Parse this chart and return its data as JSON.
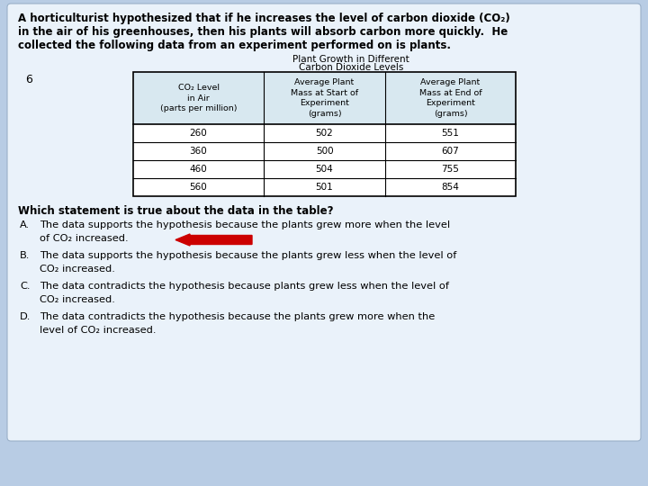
{
  "background_color": "#b8cce4",
  "card_color": "#dce9f5",
  "title_lines": [
    "A horticulturist hypothesized that if he increases the level of carbon dioxide (CO₂)",
    "in the air of his greenhouses, then his plants will absorb carbon more quickly.  He",
    "collected the following data from an experiment performed on is plants."
  ],
  "question_number": "6",
  "table_title_line1": "Plant Growth in Different",
  "table_title_line2": "Carbon Dioxide Levels",
  "col_headers": [
    "CO₂ Level\nin Air\n(parts per million)",
    "Average Plant\nMass at Start of\nExperiment\n(grams)",
    "Average Plant\nMass at End of\nExperiment\n(grams)"
  ],
  "table_data": [
    [
      "260",
      "502",
      "551"
    ],
    [
      "360",
      "500",
      "607"
    ],
    [
      "460",
      "504",
      "755"
    ],
    [
      "560",
      "501",
      "854"
    ]
  ],
  "question": "Which statement is true about the data in the table?",
  "options": [
    [
      "A.",
      "The data supports the hypothesis because the plants grew more when the level",
      "of CO₂ increased."
    ],
    [
      "B.",
      "The data supports the hypothesis because the plants grew less when the level of",
      "CO₂ increased."
    ],
    [
      "C.",
      "The data contradicts the hypothesis because plants grew less when the level of",
      "CO₂ increased."
    ],
    [
      "D.",
      "The data contradicts the hypothesis because the plants grew more when the",
      "level of CO₂ increased."
    ]
  ],
  "arrow_color": "#cc0000"
}
